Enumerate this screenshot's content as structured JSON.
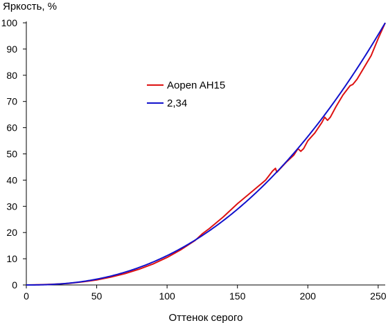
{
  "chart_data": {
    "type": "line",
    "title": "",
    "xlabel": "Оттенок серого",
    "ylabel": "Яркость, %",
    "xlim": [
      0,
      255
    ],
    "ylim": [
      0,
      100
    ],
    "xticks": [
      "0",
      "50",
      "100",
      "150",
      "200",
      "250"
    ],
    "yticks": [
      "0",
      "10",
      "20",
      "30",
      "40",
      "50",
      "60",
      "70",
      "80",
      "90",
      "100"
    ],
    "grid": false,
    "legend_position": "upper-left-center",
    "series": [
      {
        "name": "Aopen AH15",
        "color": "#dd1111",
        "points": [
          [
            0,
            0
          ],
          [
            10,
            0.1
          ],
          [
            20,
            0.3
          ],
          [
            30,
            0.6
          ],
          [
            40,
            1.2
          ],
          [
            50,
            1.9
          ],
          [
            60,
            3.0
          ],
          [
            70,
            4.3
          ],
          [
            80,
            6.0
          ],
          [
            90,
            8.0
          ],
          [
            100,
            10.5
          ],
          [
            110,
            13.5
          ],
          [
            120,
            17.0
          ],
          [
            125,
            19.5
          ],
          [
            130,
            21.5
          ],
          [
            140,
            26.0
          ],
          [
            150,
            31.0
          ],
          [
            160,
            35.5
          ],
          [
            170,
            40.0
          ],
          [
            175,
            43.5
          ],
          [
            177,
            44.5
          ],
          [
            178,
            43.0
          ],
          [
            185,
            47.0
          ],
          [
            190,
            49.5
          ],
          [
            193,
            52.0
          ],
          [
            195,
            51.0
          ],
          [
            197,
            52.0
          ],
          [
            200,
            55.0
          ],
          [
            205,
            58.0
          ],
          [
            210,
            62.0
          ],
          [
            212,
            64.0
          ],
          [
            214,
            62.8
          ],
          [
            216,
            64.0
          ],
          [
            220,
            68.0
          ],
          [
            225,
            72.5
          ],
          [
            230,
            76.0
          ],
          [
            232,
            76.5
          ],
          [
            235,
            78.5
          ],
          [
            240,
            83.0
          ],
          [
            245,
            87.5
          ],
          [
            250,
            94.0
          ],
          [
            255,
            100.0
          ]
        ]
      },
      {
        "name": "2,34",
        "color": "#1111cc",
        "gamma": 2.34
      }
    ]
  }
}
